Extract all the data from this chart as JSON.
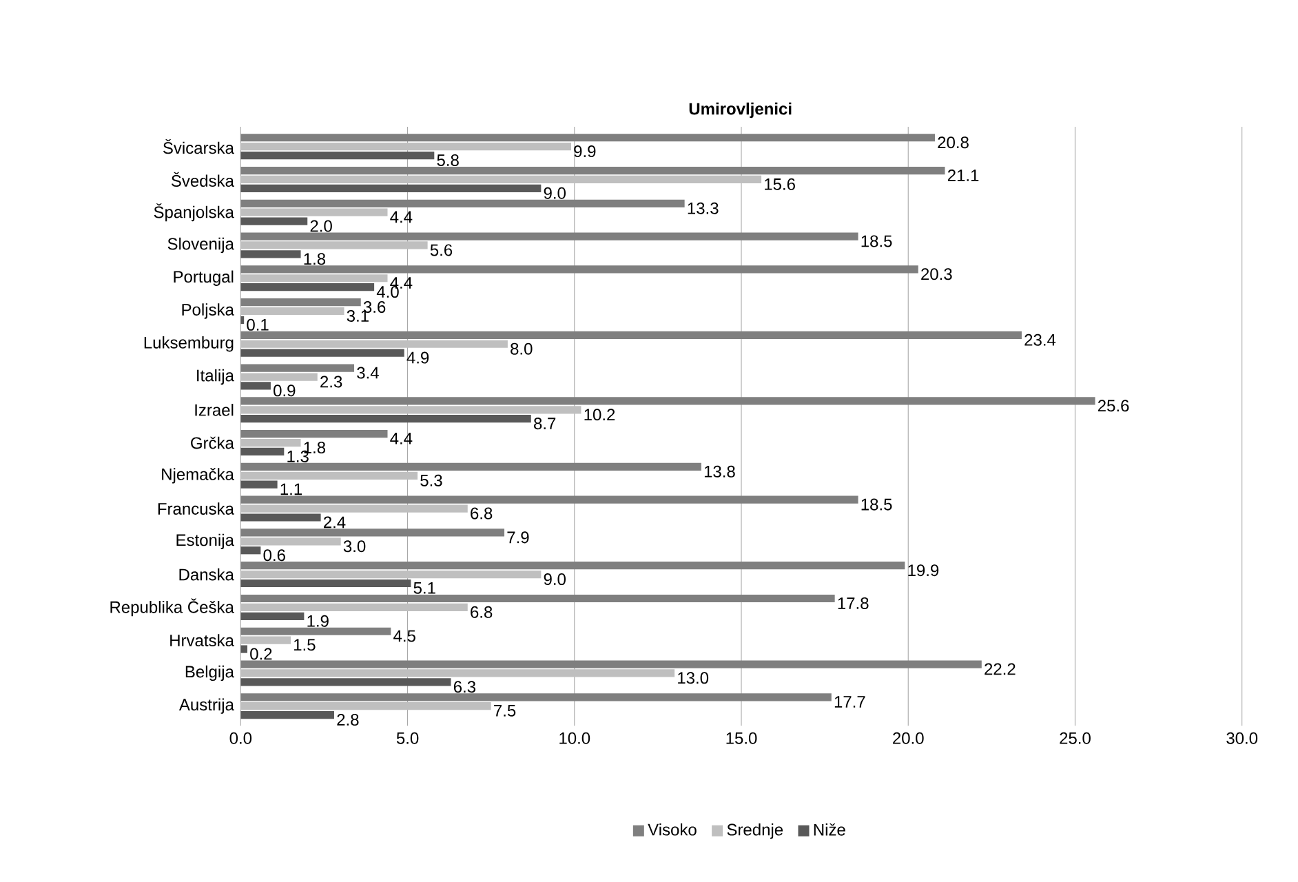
{
  "chart_data": {
    "type": "bar",
    "orientation": "horizontal",
    "title": "Umirovljenici",
    "categories": [
      "Švicarska",
      "Švedska",
      "Španjolska",
      "Slovenija",
      "Portugal",
      "Poljska",
      "Luksemburg",
      "Italija",
      "Izrael",
      "Grčka",
      "Njemačka",
      "Francuska",
      "Estonija",
      "Danska",
      "Republika Češka",
      "Hrvatska",
      "Belgija",
      "Austrija"
    ],
    "series": [
      {
        "name": "Visoko",
        "color": "#7f7f7f",
        "values": [
          20.8,
          21.1,
          13.3,
          18.5,
          20.3,
          3.6,
          23.4,
          3.4,
          25.6,
          4.4,
          13.8,
          18.5,
          7.9,
          19.9,
          17.8,
          4.5,
          22.2,
          17.7
        ],
        "value_labels": [
          "20.8",
          "21.1",
          "13.3",
          "18.5",
          "20.3",
          "3.6",
          "23.4",
          "3.4",
          "25.6",
          "4.4",
          "13.8",
          "18.5",
          "7.9",
          "19.9",
          "17.8",
          "4.5",
          "22.2",
          "17.7"
        ]
      },
      {
        "name": "Srednje",
        "color": "#bfbfbf",
        "values": [
          9.9,
          15.6,
          4.4,
          5.6,
          4.4,
          3.1,
          8.0,
          2.3,
          10.2,
          1.8,
          5.3,
          6.8,
          3.0,
          9.0,
          6.8,
          1.5,
          13.0,
          7.5
        ],
        "value_labels": [
          "9.9",
          "15.6",
          "4.4",
          "5.6",
          "4.4",
          "3.1",
          "8.0",
          "2.3",
          "10.2",
          "1.8",
          "5.3",
          "6.8",
          "3.0",
          "9.0",
          "6.8",
          "1.5",
          "13.0",
          "7.5"
        ]
      },
      {
        "name": "Niže",
        "color": "#595959",
        "values": [
          5.8,
          9.0,
          2.0,
          1.8,
          4.0,
          0.1,
          4.9,
          0.9,
          8.7,
          1.3,
          1.1,
          2.4,
          0.6,
          5.1,
          1.9,
          0.2,
          6.3,
          2.8
        ],
        "value_labels": [
          "5.8",
          "9.0",
          "2.0",
          "1.8",
          "4.0",
          "0.1",
          "4.9",
          "0.9",
          "8.7",
          "1.3",
          "1.1",
          "2.4",
          "0.6",
          "5.1",
          "1.9",
          "0.2",
          "6.3",
          "2.8"
        ]
      }
    ],
    "xlim": [
      0,
      30
    ],
    "xticks": [
      {
        "value": 0,
        "label": "0.0"
      },
      {
        "value": 5,
        "label": "5.0"
      },
      {
        "value": 10,
        "label": "10.0"
      },
      {
        "value": 15,
        "label": "15.0"
      },
      {
        "value": 20,
        "label": "20.0"
      },
      {
        "value": 25,
        "label": "25.0"
      },
      {
        "value": 30,
        "label": "30.0"
      }
    ],
    "grid": "x",
    "legend": "bottom"
  }
}
